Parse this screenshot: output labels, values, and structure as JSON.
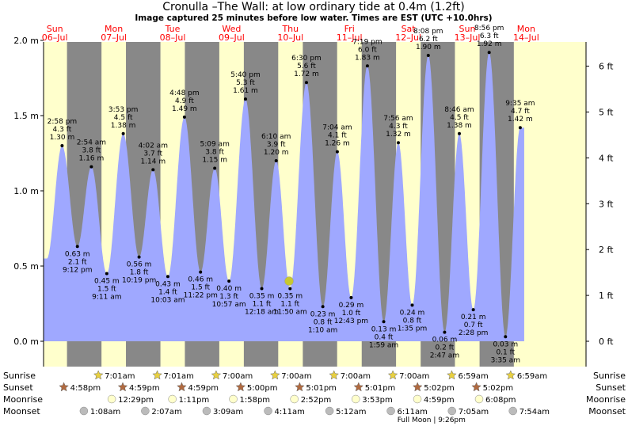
{
  "title": "Cronulla –The Wall: at low  ordinary tide at 0.4m (1.2ft)",
  "subtitle": "Image captured 25 minutes before low water. Times are EST (UTC +10.0hrs)",
  "colors": {
    "day": "#ffffcc",
    "night": "#888888",
    "tide": "#9fa8ff",
    "current_marker": "#c8c832",
    "day_label": "#ff0000",
    "sun_star": "#e8d040",
    "sunset_star": "#b06a40",
    "moonrise": "#ffffcc",
    "moonset": "#bbbbbb"
  },
  "chart_data": {
    "type": "area",
    "ylabel_left_unit": "m",
    "ylabel_right_unit": "ft",
    "ylim": [
      -0.08,
      2.1
    ],
    "xlim_hours": [
      -22.5,
      214.3
    ],
    "yticks_m": [
      "0.0 m",
      "0.5 m",
      "1.0 m",
      "1.5 m",
      "2.0 m"
    ],
    "yticks_m_values": [
      0,
      0.5,
      1.0,
      1.5,
      2.0
    ],
    "yticks_ft": [
      "0 ft",
      "1 ft",
      "2 ft",
      "3 ft",
      "4 ft",
      "5 ft",
      "6 ft"
    ],
    "yticks_ft_values": [
      0,
      1,
      2,
      3,
      4,
      5,
      6
    ],
    "days": [
      {
        "name": "Sun",
        "date": "06–Jul"
      },
      {
        "name": "Mon",
        "date": "07–Jul"
      },
      {
        "name": "Tue",
        "date": "08–Jul"
      },
      {
        "name": "Wed",
        "date": "09–Jul"
      },
      {
        "name": "Thu",
        "date": "10–Jul"
      },
      {
        "name": "Fri",
        "date": "11–Jul"
      },
      {
        "name": "Sat",
        "date": "12–Jul"
      },
      {
        "name": "Sun",
        "date": "13–Jul"
      },
      {
        "name": "Mon",
        "date": "14–Jul"
      }
    ],
    "current_time_hours": 107.42,
    "current_height_m": 0.4,
    "tides": [
      {
        "t": 14.97,
        "time": "2:58 pm",
        "ft": "4.3 ft",
        "m": "1.30 m",
        "h": 1.3,
        "type": "high"
      },
      {
        "t": 21.2,
        "time": "9:12 pm",
        "ft": "2.1 ft",
        "m": "0.63 m",
        "h": 0.63,
        "type": "low"
      },
      {
        "t": 26.9,
        "time": "2:54 am",
        "ft": "3.8 ft",
        "m": "1.16 m",
        "h": 1.16,
        "type": "high"
      },
      {
        "t": 33.18,
        "time": "9:11 am",
        "ft": "1.5 ft",
        "m": "0.45 m",
        "h": 0.45,
        "type": "low"
      },
      {
        "t": 39.88,
        "time": "3:53 pm",
        "ft": "4.5 ft",
        "m": "1.38 m",
        "h": 1.38,
        "type": "high"
      },
      {
        "t": 46.32,
        "time": "10:19 pm",
        "ft": "1.8 ft",
        "m": "0.56 m",
        "h": 0.56,
        "type": "low"
      },
      {
        "t": 52.03,
        "time": "4:02 am",
        "ft": "3.7 ft",
        "m": "1.14 m",
        "h": 1.14,
        "type": "high"
      },
      {
        "t": 58.05,
        "time": "10:03 am",
        "ft": "1.4 ft",
        "m": "0.43 m",
        "h": 0.43,
        "type": "low"
      },
      {
        "t": 64.8,
        "time": "4:48 pm",
        "ft": "4.9 ft",
        "m": "1.49 m",
        "h": 1.49,
        "type": "high"
      },
      {
        "t": 71.37,
        "time": "11:22 pm",
        "ft": "1.5 ft",
        "m": "0.46 m",
        "h": 0.46,
        "type": "low"
      },
      {
        "t": 77.15,
        "time": "5:09 am",
        "ft": "3.8 ft",
        "m": "1.15 m",
        "h": 1.15,
        "type": "high"
      },
      {
        "t": 82.95,
        "time": "10:57 am",
        "ft": "1.3 ft",
        "m": "0.40 m",
        "h": 0.4,
        "type": "low"
      },
      {
        "t": 89.67,
        "time": "5:40 pm",
        "ft": "5.3 ft",
        "m": "1.61 m",
        "h": 1.61,
        "type": "high"
      },
      {
        "t": 96.3,
        "time": "12:18 am",
        "ft": "1.1 ft",
        "m": "0.35 m",
        "h": 0.35,
        "type": "low"
      },
      {
        "t": 102.17,
        "time": "6:10 am",
        "ft": "3.9 ft",
        "m": "1.20 m",
        "h": 1.2,
        "type": "high"
      },
      {
        "t": 107.83,
        "time": "11:50 am",
        "ft": "1.1 ft",
        "m": "0.35 m",
        "h": 0.35,
        "type": "low"
      },
      {
        "t": 114.5,
        "time": "6:30 pm",
        "ft": "5.6 ft",
        "m": "1.72 m",
        "h": 1.72,
        "type": "high"
      },
      {
        "t": 121.17,
        "time": "1:10 am",
        "ft": "0.8 ft",
        "m": "0.23 m",
        "h": 0.23,
        "type": "low"
      },
      {
        "t": 127.07,
        "time": "7:04 am",
        "ft": "4.1 ft",
        "m": "1.26 m",
        "h": 1.26,
        "type": "high"
      },
      {
        "t": 132.72,
        "time": "12:43 pm",
        "ft": "1.0 ft",
        "m": "0.29 m",
        "h": 0.29,
        "type": "low"
      },
      {
        "t": 139.32,
        "time": "7:19 pm",
        "ft": "6.0 ft",
        "m": "1.83 m",
        "h": 1.83,
        "type": "high"
      },
      {
        "t": 145.98,
        "time": "1:59 am",
        "ft": "0.4 ft",
        "m": "0.13 m",
        "h": 0.13,
        "type": "low"
      },
      {
        "t": 151.93,
        "time": "7:56 am",
        "ft": "4.3 ft",
        "m": "1.32 m",
        "h": 1.32,
        "type": "high"
      },
      {
        "t": 157.58,
        "time": "1:35 pm",
        "ft": "0.8 ft",
        "m": "0.24 m",
        "h": 0.24,
        "type": "low"
      },
      {
        "t": 164.13,
        "time": "8:08 pm",
        "ft": "6.2 ft",
        "m": "1.90 m",
        "h": 1.9,
        "type": "high"
      },
      {
        "t": 170.78,
        "time": "2:47 am",
        "ft": "0.2 ft",
        "m": "0.06 m",
        "h": 0.06,
        "type": "low"
      },
      {
        "t": 176.77,
        "time": "8:46 am",
        "ft": "4.5 ft",
        "m": "1.38 m",
        "h": 1.38,
        "type": "high"
      },
      {
        "t": 182.47,
        "time": "2:28 pm",
        "ft": "0.7 ft",
        "m": "0.21 m",
        "h": 0.21,
        "type": "low"
      },
      {
        "t": 188.93,
        "time": "8:56 pm",
        "ft": "6.3 ft",
        "m": "1.92 m",
        "h": 1.92,
        "type": "high"
      },
      {
        "t": 195.58,
        "time": "3:35 am",
        "ft": "0.1 ft",
        "m": "0.03 m",
        "h": 0.03,
        "type": "low"
      },
      {
        "t": 201.58,
        "time": "9:35 am",
        "ft": "4.7 ft",
        "m": "1.42 m",
        "h": 1.42,
        "type": "high"
      }
    ],
    "sun_rows": {
      "labels": [
        "Sunrise",
        "Sunset",
        "Moonrise",
        "Moonset"
      ],
      "sunrise": [
        {
          "t": 31.02,
          "time": "7:01am"
        },
        {
          "t": 55.02,
          "time": "7:01am"
        },
        {
          "t": 79.0,
          "time": "7:00am"
        },
        {
          "t": 103.0,
          "time": "7:00am"
        },
        {
          "t": 127.0,
          "time": "7:00am"
        },
        {
          "t": 151.0,
          "time": "7:00am"
        },
        {
          "t": 174.98,
          "time": "6:59am"
        },
        {
          "t": 198.98,
          "time": "6:59am"
        }
      ],
      "sunset": [
        {
          "t": 16.97,
          "time": "4:58pm"
        },
        {
          "t": 40.98,
          "time": "4:59pm"
        },
        {
          "t": 64.98,
          "time": "4:59pm"
        },
        {
          "t": 89.0,
          "time": "5:00pm"
        },
        {
          "t": 113.02,
          "time": "5:01pm"
        },
        {
          "t": 137.02,
          "time": "5:01pm"
        },
        {
          "t": 161.03,
          "time": "5:02pm"
        },
        {
          "t": 185.03,
          "time": "5:02pm"
        }
      ],
      "moonrise": [
        {
          "t": 36.48,
          "time": "12:29pm"
        },
        {
          "t": 61.18,
          "time": "1:11pm"
        },
        {
          "t": 85.97,
          "time": "1:58pm"
        },
        {
          "t": 110.87,
          "time": "2:52pm"
        },
        {
          "t": 135.88,
          "time": "3:53pm"
        },
        {
          "t": 160.98,
          "time": "4:59pm"
        },
        {
          "t": 186.13,
          "time": "6:08pm"
        }
      ],
      "moonset": [
        {
          "t": 25.13,
          "time": "1:08am"
        },
        {
          "t": 50.12,
          "time": "2:07am"
        },
        {
          "t": 75.15,
          "time": "3:09am"
        },
        {
          "t": 100.18,
          "time": "4:11am"
        },
        {
          "t": 125.2,
          "time": "5:12am"
        },
        {
          "t": 150.18,
          "time": "6:11am"
        },
        {
          "t": 175.08,
          "time": "7:05am"
        },
        {
          "t": 199.9,
          "time": "7:54am"
        }
      ],
      "full_moon_label": "Full Moon | 9:26pm",
      "full_moon_t": 165.43
    }
  }
}
